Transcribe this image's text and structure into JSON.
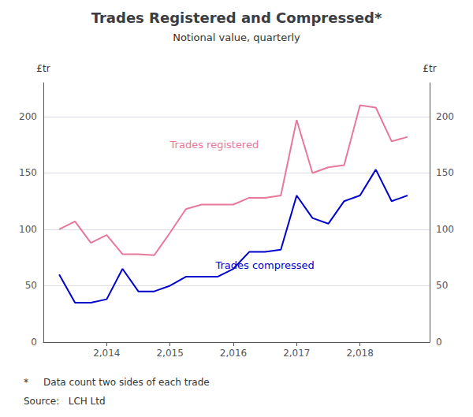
{
  "chart_data": {
    "type": "line",
    "title": "Trades Registered and Compressed*",
    "subtitle": "Notional value, quarterly",
    "ylabel": "£tr",
    "y2label": "£tr",
    "footnote": "*     Data count two sides of each trade",
    "source": "Source:   LCH Ltd",
    "x": [
      2013.25,
      2013.5,
      2013.75,
      2014.0,
      2014.25,
      2014.5,
      2014.75,
      2015.0,
      2015.25,
      2015.5,
      2015.75,
      2016.0,
      2016.25,
      2016.5,
      2016.75,
      2017.0,
      2017.25,
      2017.5,
      2017.75,
      2018.0,
      2018.25,
      2018.5,
      2018.75
    ],
    "series": [
      {
        "name": "Trades registered",
        "color": "#e8789a",
        "values": [
          100,
          107,
          88,
          95,
          78,
          78,
          77,
          97,
          118,
          122,
          122,
          122,
          128,
          128,
          130,
          197,
          150,
          155,
          157,
          210,
          208,
          178,
          182
        ]
      },
      {
        "name": "Trades compressed",
        "color": "#0000cd",
        "values": [
          60,
          35,
          35,
          38,
          65,
          45,
          45,
          50,
          58,
          58,
          58,
          65,
          80,
          80,
          82,
          130,
          110,
          105,
          125,
          130,
          153,
          125,
          130
        ]
      }
    ],
    "annotations": [
      {
        "text": "Trades registered",
        "x": 2015.7,
        "y": 175,
        "color": "#e8789a"
      },
      {
        "text": "Trades compressed",
        "x": 2016.5,
        "y": 68,
        "color": "#0000cd"
      }
    ],
    "xlim": [
      2013.0,
      2019.1
    ],
    "xticks": [
      2014,
      2015,
      2016,
      2017,
      2018
    ],
    "ylim": [
      0,
      230
    ],
    "yticks": [
      0,
      50,
      100,
      150,
      200
    ],
    "y2lim": [
      0,
      230
    ],
    "y2ticks": [
      0,
      50,
      100,
      150,
      200
    ],
    "grid": true
  }
}
